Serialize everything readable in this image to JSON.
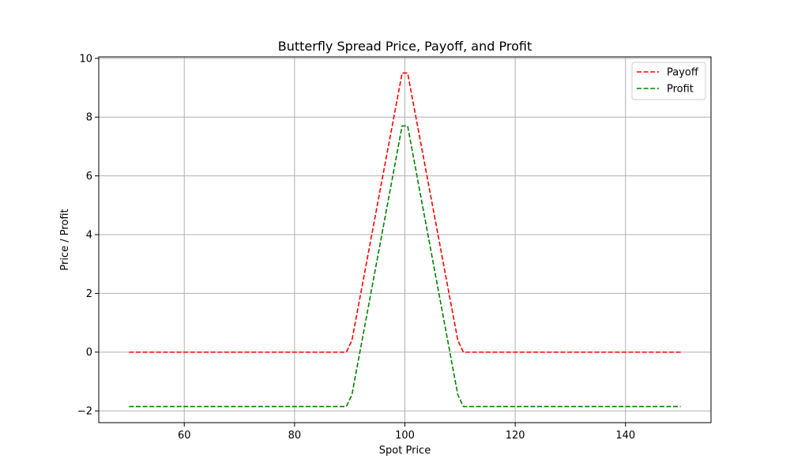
{
  "chart_data": {
    "type": "line",
    "title": "Butterfly Spread Price, Payoff, and Profit",
    "xlabel": "Spot Price",
    "ylabel": "Price / Profit",
    "xlim": [
      44.5,
      155.5
    ],
    "ylim": [
      -2.4,
      10.05
    ],
    "xticks": [
      60,
      80,
      100,
      120,
      140
    ],
    "yticks": [
      -2,
      0,
      2,
      4,
      6,
      8,
      10
    ],
    "xtick_labels": [
      "60",
      "80",
      "100",
      "120",
      "140"
    ],
    "ytick_labels": [
      "−2",
      "0",
      "2",
      "4",
      "6",
      "8",
      "10"
    ],
    "grid": true,
    "legend_position": "top-right",
    "series": [
      {
        "name": "Payoff",
        "color": "#ff0000",
        "line_style": "dashed",
        "points": [
          [
            50,
            0
          ],
          [
            89.4,
            0
          ],
          [
            90.4,
            0.4
          ],
          [
            99.5,
            9.5
          ],
          [
            100.5,
            9.5
          ],
          [
            109.6,
            0.4
          ],
          [
            110.6,
            0
          ],
          [
            150,
            0
          ]
        ]
      },
      {
        "name": "Profit",
        "color": "#008000",
        "line_style": "dashed",
        "points": [
          [
            50,
            -1.85
          ],
          [
            89.4,
            -1.85
          ],
          [
            90.4,
            -1.45
          ],
          [
            99.5,
            7.7
          ],
          [
            100.5,
            7.7
          ],
          [
            109.6,
            -1.45
          ],
          [
            110.6,
            -1.85
          ],
          [
            150,
            -1.85
          ]
        ]
      }
    ]
  }
}
